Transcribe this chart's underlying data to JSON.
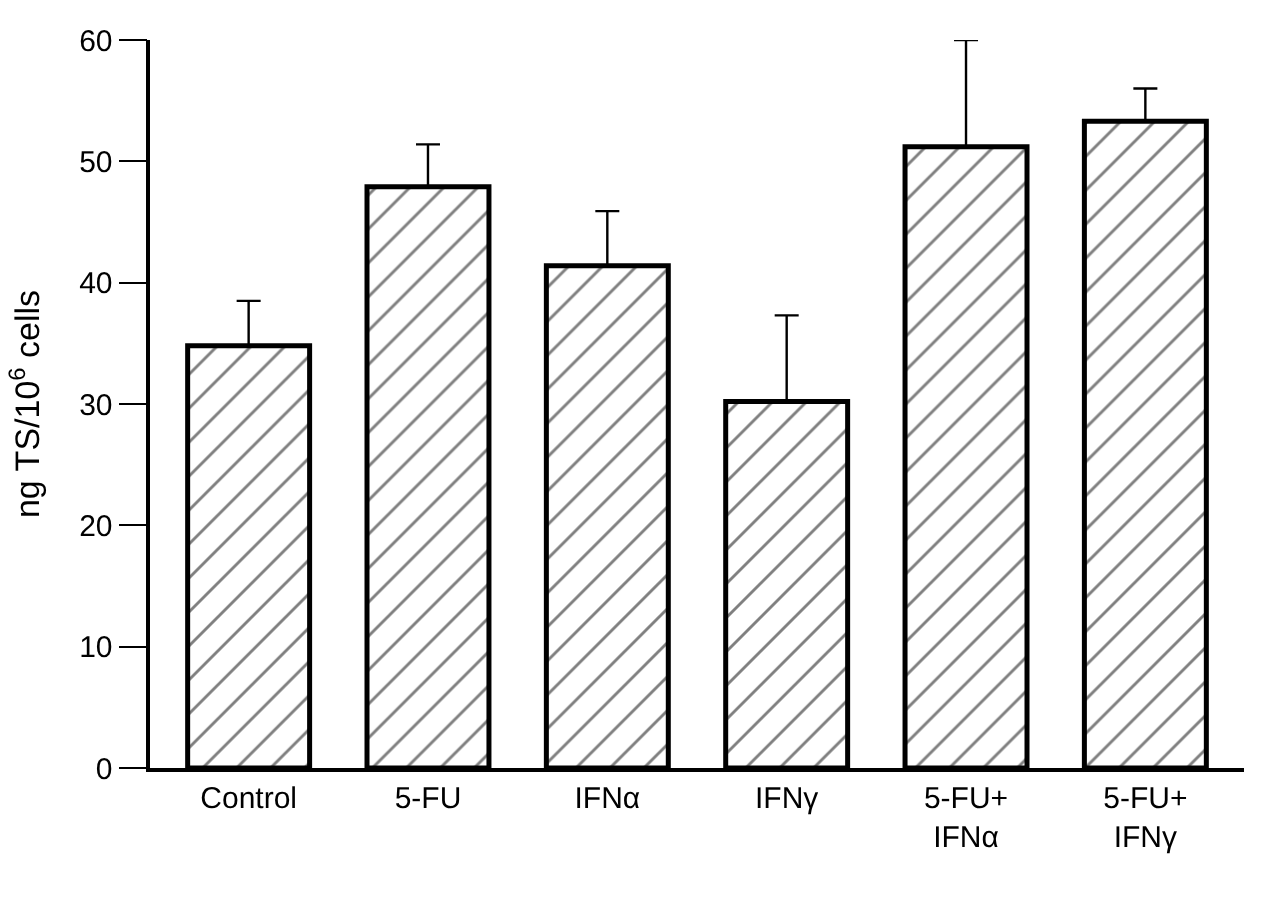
{
  "chart_data": {
    "type": "bar",
    "ylabel": "ng TS/10$^{6}$ cells",
    "categories": [
      "Control",
      "5-FU",
      "IFNα",
      "IFNγ",
      "5-FU+\nIFNα",
      "5-FU+\nIFNγ"
    ],
    "values": [
      34.8,
      47.9,
      41.4,
      30.2,
      51.2,
      53.3
    ],
    "errors": [
      [
        34.8,
        38.5
      ],
      [
        47.9,
        51.4
      ],
      [
        41.4,
        45.9
      ],
      [
        30.2,
        37.3
      ],
      [
        51.2,
        60
      ],
      [
        53.3,
        56.0
      ]
    ],
    "color": "#000000",
    "ylim": [
      0,
      60
    ],
    "yticks": [
      0,
      10,
      20,
      30,
      40,
      50,
      60
    ]
  }
}
